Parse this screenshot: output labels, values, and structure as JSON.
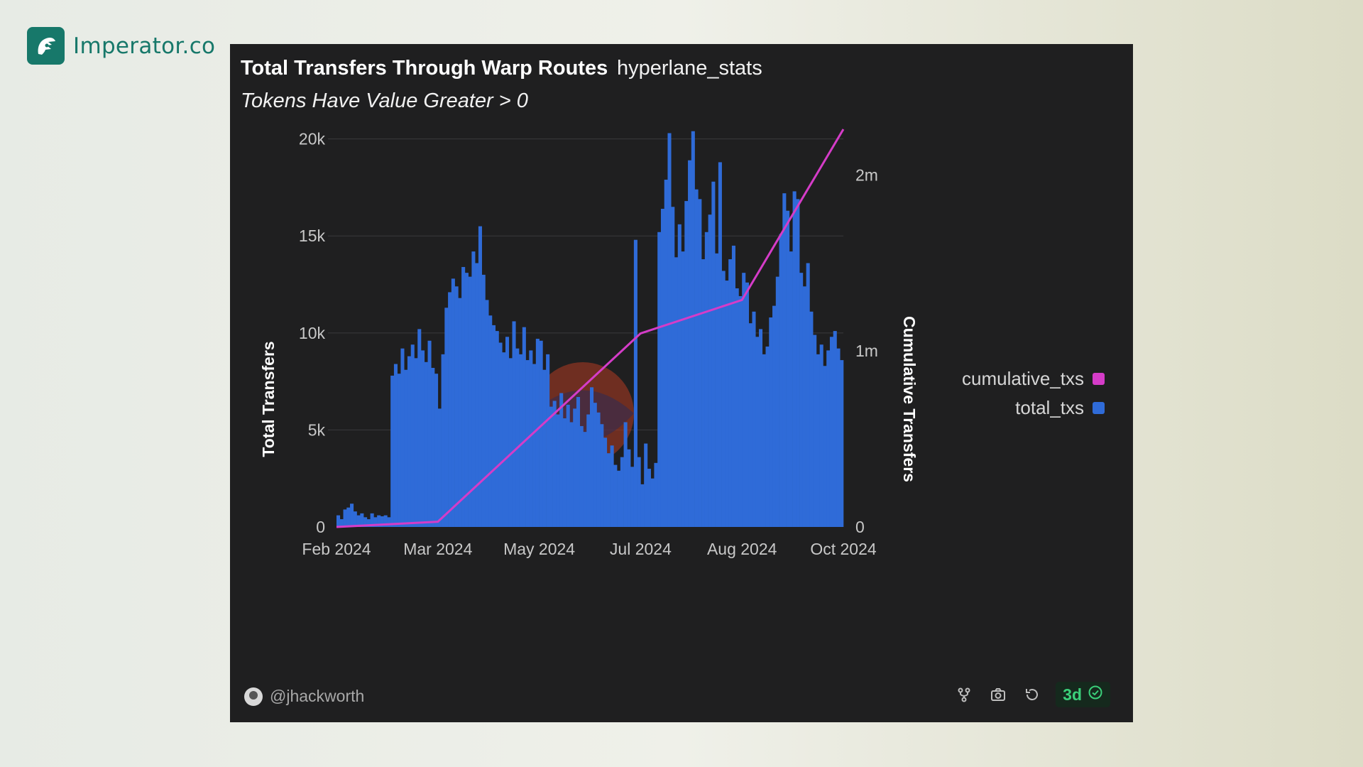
{
  "brand": {
    "name": "Imperator.co",
    "icon": "spartan-helmet-icon",
    "color": "#17786a"
  },
  "card": {
    "title": "Total Transfers Through Warp Routes",
    "source": "hyperlane_stats",
    "subtitle": "Tokens Have Value Greater > 0",
    "watermark": "Dune",
    "author": "@jhackworth",
    "refresh_label": "3d",
    "tool_icons": [
      "fork-icon",
      "camera-icon",
      "refresh-icon",
      "check-circle-icon"
    ]
  },
  "chart_data": {
    "type": "bar",
    "title": "Total Transfers Through Warp Routes",
    "subtitle": "Tokens Have Value Greater > 0",
    "xlabel": "",
    "ylabel": "Total Transfers",
    "y2label": "Cumulative Transfers",
    "x_ticks": [
      "Feb 2024",
      "Mar 2024",
      "May 2024",
      "Jul 2024",
      "Aug 2024",
      "Oct 2024"
    ],
    "y_ticks": [
      "0",
      "5k",
      "10k",
      "15k",
      "20k"
    ],
    "y2_ticks": [
      "0",
      "1m",
      "2m"
    ],
    "ylim": [
      0,
      20500
    ],
    "y2lim": [
      0,
      2260000
    ],
    "grid": true,
    "legend": "right",
    "series": [
      {
        "name": "total_txs",
        "kind": "bar",
        "axis": "left",
        "color": "#2f6bd8",
        "values": [
          600,
          400,
          900,
          1000,
          1200,
          800,
          600,
          700,
          500,
          400,
          700,
          500,
          600,
          550,
          600,
          500,
          7800,
          8400,
          7900,
          9200,
          8100,
          8800,
          9400,
          8700,
          10200,
          9100,
          8500,
          9600,
          8200,
          7900,
          6100,
          8900,
          11300,
          12100,
          12800,
          12400,
          11800,
          13400,
          13100,
          12900,
          14200,
          13600,
          15500,
          13000,
          11700,
          10900,
          10400,
          10100,
          9500,
          9000,
          9800,
          8700,
          10600,
          9200,
          8900,
          10300,
          8600,
          9100,
          8400,
          9700,
          9600,
          8100,
          8900,
          6200,
          6500,
          5800,
          6900,
          5600,
          6300,
          5400,
          6100,
          6700,
          5200,
          4900,
          5800,
          7200,
          6400,
          5900,
          5300,
          4600,
          3800,
          4200,
          3200,
          2900,
          3600,
          5400,
          4000,
          3100,
          14800,
          3600,
          2200,
          4300,
          3000,
          2500,
          3300,
          15200,
          16400,
          17900,
          20300,
          16500,
          13900,
          15600,
          14200,
          16800,
          18900,
          20400,
          17400,
          16900,
          13800,
          15200,
          16100,
          17800,
          14100,
          18800,
          13200,
          12700,
          13800,
          14500,
          12300,
          11900,
          13100,
          12600,
          10500,
          11100,
          9800,
          10200,
          8900,
          9300,
          10800,
          11400,
          12900,
          15100,
          17200,
          16300,
          14200,
          17300,
          16900,
          13100,
          12400,
          13600,
          11100,
          9900,
          8900,
          9400,
          8300,
          9100,
          9800,
          10100,
          9200,
          8600
        ]
      },
      {
        "name": "cumulative_txs",
        "kind": "line",
        "axis": "right",
        "color": "#d53cc8",
        "x": [
          "Feb 2024",
          "Mar 2024",
          "May 2024",
          "Jul 2024",
          "Aug 2024",
          "Oct 2024"
        ],
        "values": [
          0,
          30000,
          565000,
          1100000,
          1290000,
          2260000
        ]
      }
    ]
  }
}
